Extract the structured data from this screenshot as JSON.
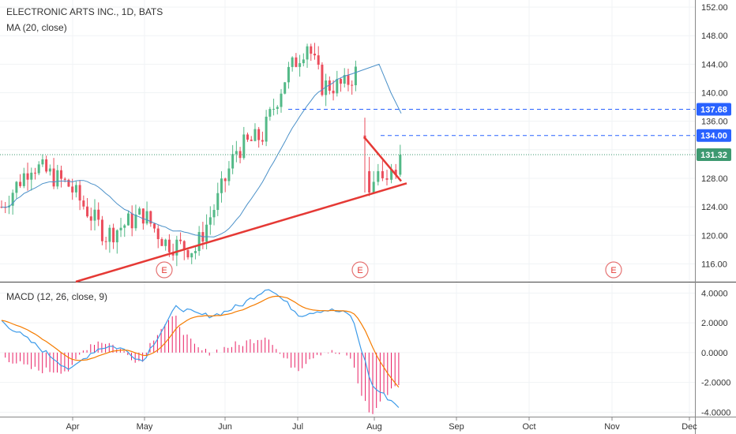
{
  "title": "ELECTRONIC ARTS INC., 1D, BATS",
  "indicator_label": "MA (20, close)",
  "macd_label": "MACD (12, 26, close, 9)",
  "colors": {
    "up": "#53b987",
    "down": "#eb4d5c",
    "ma": "#4a90c8",
    "macd": "#3d9be9",
    "signal": "#f57c00",
    "hist": "#e91e63",
    "trend": "#e53935",
    "level": "#2962ff",
    "price_tag": "#3d9970"
  },
  "chart_data": [
    {
      "type": "candlestick",
      "title": "ELECTRONIC ARTS INC., 1D, BATS",
      "x_tick_labels": [
        "Apr",
        "May",
        "Jun",
        "Jul",
        "Aug",
        "Sep",
        "Oct",
        "Nov",
        "Dec"
      ],
      "y_ticks": [
        116,
        120,
        124,
        128,
        132,
        136,
        140,
        144,
        148,
        152
      ],
      "y_tick_labels": [
        "116.00",
        "120.00",
        "124.00",
        "128.00",
        "",
        "136.00",
        "140.00",
        "144.00",
        "148.00",
        "152.00"
      ],
      "ylim": [
        113.5,
        153
      ],
      "levels": [
        {
          "value": 137.68,
          "label": "137.68",
          "style": "dashed"
        },
        {
          "value": 134.0,
          "label": "134.00",
          "style": "dashed"
        }
      ],
      "last_price": {
        "value": 131.32,
        "label": "131.32"
      },
      "earnings_markers": [
        {
          "label": "E"
        },
        {
          "label": "E"
        },
        {
          "label": "E"
        }
      ],
      "grid": true
    },
    {
      "type": "macd",
      "title": "MACD (12, 26, close, 9)",
      "y_ticks": [
        4,
        2,
        0,
        -2,
        -4
      ],
      "y_tick_labels": [
        "4.0000",
        "2.0000",
        "0.0000",
        "-2.0000",
        "-4.0000"
      ],
      "ylim": [
        -4.3,
        4.6
      ],
      "grid": true
    }
  ]
}
